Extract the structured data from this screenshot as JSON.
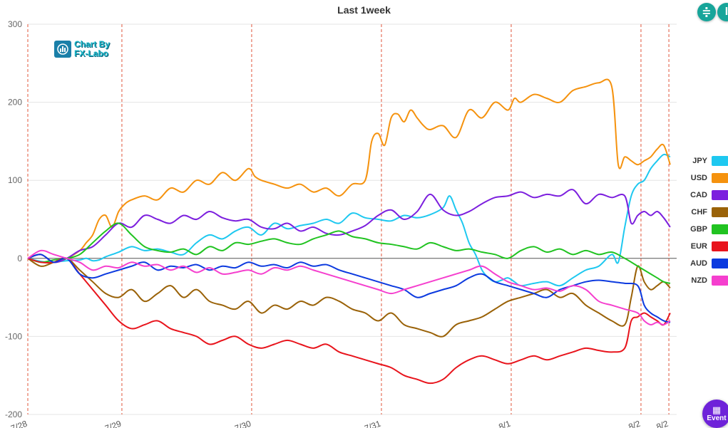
{
  "chart_data": {
    "type": "line",
    "title": "Last 1week",
    "ylim": [
      -200,
      300
    ],
    "yticks": [
      300,
      200,
      100,
      0,
      -100,
      -200
    ],
    "x_range": [
      0,
      100
    ],
    "xtick_labels": [
      {
        "x": 0,
        "label": "7/28"
      },
      {
        "x": 14.5,
        "label": "7/29"
      },
      {
        "x": 34.5,
        "label": "7/30"
      },
      {
        "x": 54.5,
        "label": "7/31"
      },
      {
        "x": 74.5,
        "label": "8/1"
      },
      {
        "x": 94.5,
        "label": "8/2"
      },
      {
        "x": 98.8,
        "label": "8/2"
      }
    ],
    "series": [
      {
        "name": "JPY",
        "color": "#1ec8f0",
        "x": [
          0,
          3,
          6,
          8,
          9,
          10,
          11,
          12,
          14,
          16,
          18,
          20,
          22,
          24,
          26,
          28,
          30,
          32,
          34,
          36,
          38,
          40,
          42,
          44,
          46,
          48,
          50,
          52,
          54,
          56,
          58,
          60,
          62,
          64,
          65,
          66,
          67,
          68,
          69,
          70,
          71,
          72,
          73,
          74,
          75,
          76,
          78,
          80,
          82,
          84,
          86,
          88,
          90,
          91,
          92,
          93,
          94,
          95,
          96,
          97,
          98,
          99
        ],
        "values": [
          0,
          -5,
          -3,
          -2,
          0,
          -3,
          -2,
          2,
          8,
          15,
          10,
          12,
          8,
          5,
          20,
          30,
          25,
          35,
          40,
          30,
          45,
          38,
          42,
          45,
          50,
          45,
          58,
          52,
          50,
          48,
          55,
          52,
          56,
          65,
          80,
          62,
          45,
          20,
          5,
          -15,
          -25,
          -30,
          -28,
          -25,
          -30,
          -35,
          -32,
          -30,
          -35,
          -25,
          -15,
          -10,
          5,
          -5,
          40,
          80,
          95,
          100,
          115,
          125,
          133,
          130
        ]
      },
      {
        "name": "USD",
        "color": "#f5920e",
        "x": [
          0,
          2,
          4,
          6,
          8,
          9,
          10,
          11,
          12,
          13,
          14,
          15,
          16,
          18,
          20,
          22,
          24,
          26,
          28,
          30,
          32,
          34,
          35,
          36,
          38,
          40,
          42,
          44,
          46,
          48,
          50,
          52,
          53,
          54,
          55,
          56,
          57,
          58,
          59,
          60,
          61,
          62,
          64,
          66,
          68,
          70,
          72,
          74,
          75,
          76,
          78,
          80,
          82,
          84,
          86,
          88,
          90,
          91,
          92,
          93,
          94,
          95,
          96,
          97,
          98,
          99
        ],
        "values": [
          0,
          5,
          -5,
          0,
          10,
          20,
          30,
          50,
          55,
          40,
          60,
          70,
          75,
          80,
          75,
          90,
          85,
          100,
          95,
          110,
          100,
          115,
          105,
          100,
          95,
          90,
          95,
          85,
          90,
          80,
          95,
          100,
          150,
          160,
          145,
          180,
          185,
          175,
          190,
          180,
          170,
          165,
          170,
          155,
          190,
          180,
          200,
          190,
          205,
          200,
          210,
          205,
          200,
          215,
          220,
          225,
          220,
          120,
          130,
          125,
          120,
          125,
          130,
          140,
          145,
          120
        ]
      },
      {
        "name": "CAD",
        "color": "#7c1fde",
        "x": [
          0,
          2,
          4,
          6,
          8,
          10,
          12,
          14,
          16,
          18,
          20,
          22,
          24,
          26,
          28,
          30,
          32,
          34,
          36,
          38,
          40,
          42,
          44,
          46,
          48,
          50,
          52,
          54,
          56,
          58,
          60,
          62,
          64,
          66,
          68,
          70,
          72,
          74,
          76,
          78,
          80,
          82,
          84,
          86,
          88,
          90,
          92,
          93,
          94,
          95,
          96,
          97,
          98,
          99
        ],
        "values": [
          0,
          5,
          -5,
          0,
          10,
          15,
          30,
          45,
          40,
          55,
          50,
          45,
          55,
          50,
          60,
          52,
          48,
          50,
          40,
          38,
          45,
          35,
          40,
          32,
          30,
          35,
          42,
          55,
          62,
          50,
          60,
          82,
          62,
          55,
          60,
          70,
          78,
          80,
          85,
          78,
          82,
          80,
          88,
          70,
          82,
          78,
          80,
          45,
          55,
          60,
          55,
          60,
          52,
          40
        ]
      },
      {
        "name": "CHF",
        "color": "#9a6208",
        "x": [
          0,
          2,
          4,
          6,
          8,
          10,
          12,
          14,
          16,
          18,
          20,
          22,
          24,
          26,
          28,
          30,
          32,
          34,
          36,
          38,
          40,
          42,
          44,
          46,
          48,
          50,
          52,
          54,
          56,
          58,
          60,
          62,
          64,
          66,
          68,
          70,
          72,
          74,
          76,
          78,
          80,
          82,
          84,
          86,
          88,
          90,
          92,
          93,
          94,
          95,
          96,
          97,
          98,
          99
        ],
        "values": [
          0,
          -10,
          -5,
          0,
          -15,
          -30,
          -45,
          -50,
          -40,
          -55,
          -45,
          -35,
          -50,
          -40,
          -55,
          -60,
          -65,
          -55,
          -70,
          -60,
          -65,
          -55,
          -60,
          -50,
          -55,
          -65,
          -70,
          -80,
          -70,
          -85,
          -90,
          -95,
          -100,
          -85,
          -80,
          -75,
          -65,
          -55,
          -50,
          -45,
          -40,
          -50,
          -45,
          -60,
          -70,
          -80,
          -85,
          -50,
          -10,
          -30,
          -40,
          -35,
          -30,
          -38
        ]
      },
      {
        "name": "GBP",
        "color": "#21c321",
        "x": [
          0,
          2,
          4,
          6,
          8,
          10,
          12,
          14,
          16,
          18,
          20,
          22,
          24,
          26,
          28,
          30,
          32,
          34,
          36,
          38,
          40,
          42,
          44,
          46,
          48,
          50,
          52,
          54,
          56,
          58,
          60,
          62,
          64,
          66,
          68,
          70,
          72,
          74,
          76,
          78,
          80,
          82,
          84,
          86,
          88,
          90,
          92,
          94,
          95,
          96,
          97,
          98,
          99
        ],
        "values": [
          0,
          -5,
          -2,
          0,
          5,
          20,
          35,
          45,
          30,
          15,
          10,
          8,
          12,
          5,
          15,
          10,
          20,
          18,
          22,
          25,
          20,
          18,
          25,
          30,
          35,
          28,
          25,
          20,
          18,
          15,
          12,
          20,
          15,
          10,
          12,
          8,
          5,
          0,
          10,
          15,
          8,
          12,
          5,
          10,
          5,
          8,
          0,
          -10,
          -15,
          -20,
          -25,
          -30,
          -32
        ]
      },
      {
        "name": "EUR",
        "color": "#e8141c",
        "x": [
          0,
          2,
          4,
          6,
          8,
          10,
          12,
          14,
          16,
          18,
          20,
          22,
          24,
          26,
          28,
          30,
          32,
          34,
          36,
          38,
          40,
          42,
          44,
          46,
          48,
          50,
          52,
          54,
          56,
          58,
          60,
          62,
          64,
          66,
          68,
          70,
          72,
          74,
          76,
          78,
          80,
          82,
          84,
          86,
          88,
          90,
          92,
          93,
          94,
          95,
          96,
          97,
          98,
          99
        ],
        "values": [
          0,
          -5,
          -5,
          0,
          -20,
          -40,
          -60,
          -80,
          -90,
          -85,
          -80,
          -90,
          -95,
          -100,
          -110,
          -105,
          -100,
          -110,
          -115,
          -110,
          -105,
          -110,
          -115,
          -110,
          -120,
          -125,
          -130,
          -135,
          -140,
          -150,
          -155,
          -160,
          -155,
          -140,
          -130,
          -125,
          -130,
          -135,
          -130,
          -125,
          -130,
          -125,
          -120,
          -115,
          -118,
          -120,
          -115,
          -80,
          -75,
          -70,
          -75,
          -80,
          -85,
          -70
        ]
      },
      {
        "name": "AUD",
        "color": "#0c3adf",
        "x": [
          0,
          2,
          4,
          6,
          8,
          10,
          12,
          14,
          16,
          18,
          20,
          22,
          24,
          26,
          28,
          30,
          32,
          34,
          36,
          38,
          40,
          42,
          44,
          46,
          48,
          50,
          52,
          54,
          56,
          58,
          60,
          62,
          64,
          66,
          68,
          70,
          72,
          74,
          76,
          78,
          80,
          82,
          84,
          86,
          88,
          90,
          92,
          94,
          95,
          96,
          97,
          98,
          99
        ],
        "values": [
          0,
          5,
          -5,
          0,
          -20,
          -25,
          -20,
          -15,
          -10,
          -5,
          -15,
          -10,
          -12,
          -8,
          -15,
          -10,
          -12,
          -5,
          -10,
          -8,
          -12,
          -5,
          -10,
          -8,
          -15,
          -20,
          -25,
          -30,
          -35,
          -40,
          -50,
          -45,
          -40,
          -35,
          -25,
          -20,
          -30,
          -35,
          -40,
          -45,
          -50,
          -40,
          -35,
          -30,
          -28,
          -30,
          -32,
          -35,
          -60,
          -70,
          -75,
          -80,
          -82
        ]
      },
      {
        "name": "NZD",
        "color": "#f53fce",
        "x": [
          0,
          2,
          4,
          6,
          8,
          10,
          12,
          14,
          16,
          18,
          20,
          22,
          24,
          26,
          28,
          30,
          32,
          34,
          36,
          38,
          40,
          42,
          44,
          46,
          48,
          50,
          52,
          54,
          56,
          58,
          60,
          62,
          64,
          66,
          68,
          70,
          72,
          74,
          76,
          78,
          80,
          82,
          84,
          86,
          88,
          90,
          92,
          94,
          95,
          96,
          97,
          98,
          99
        ],
        "values": [
          0,
          10,
          5,
          0,
          -5,
          -15,
          -10,
          -12,
          -5,
          -10,
          -8,
          -15,
          -10,
          -18,
          -12,
          -20,
          -18,
          -15,
          -20,
          -12,
          -15,
          -10,
          -15,
          -20,
          -25,
          -30,
          -35,
          -40,
          -45,
          -40,
          -35,
          -30,
          -25,
          -20,
          -15,
          -10,
          -20,
          -30,
          -35,
          -40,
          -38,
          -42,
          -35,
          -40,
          -55,
          -60,
          -65,
          -70,
          -80,
          -85,
          -82,
          -85,
          -80
        ]
      }
    ]
  },
  "toolbar": {
    "btn1_icon": "≑",
    "btn2_icon": "I"
  },
  "event_button": {
    "label": "Event",
    "icon": "calendar-icon"
  },
  "logo": {
    "line1": "Chart By",
    "line2": "FX-Labo"
  }
}
